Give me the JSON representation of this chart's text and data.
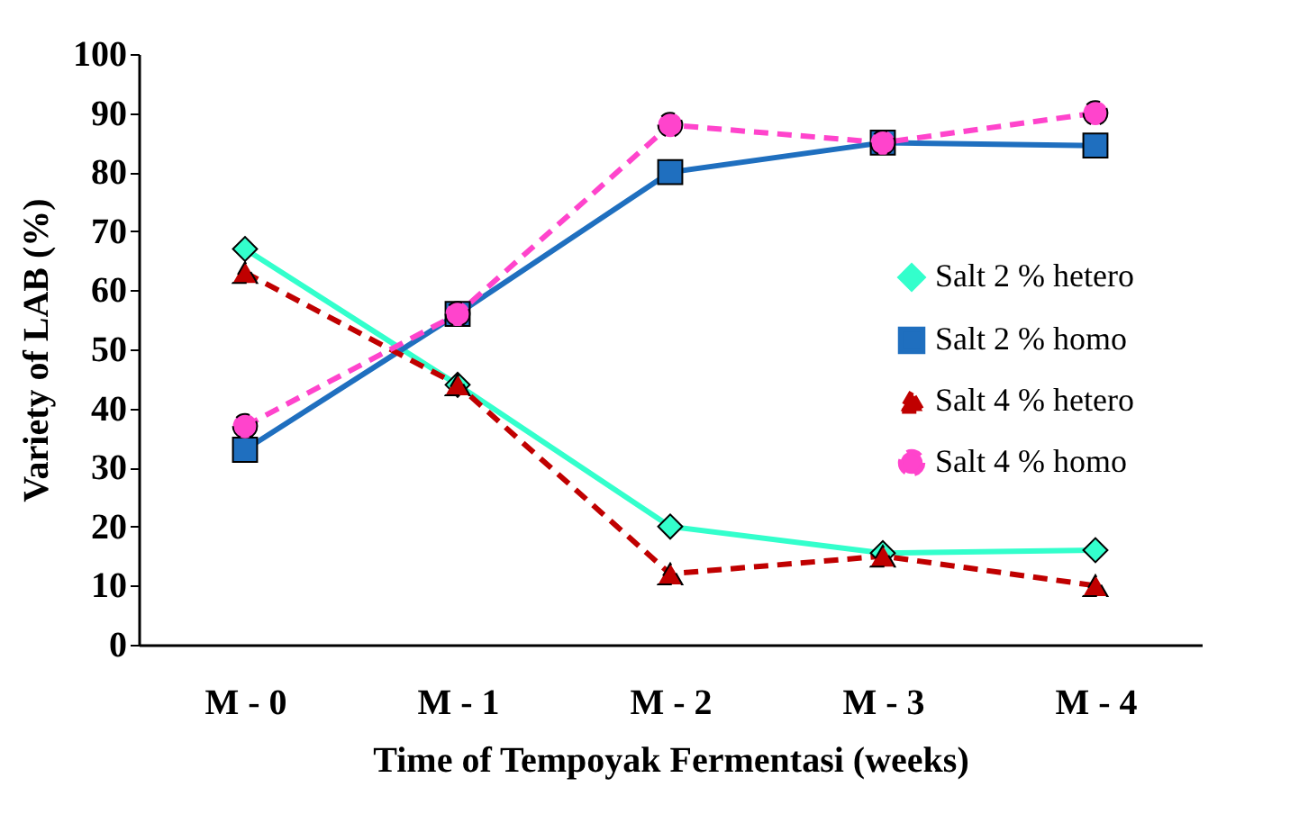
{
  "chart_data": {
    "type": "line",
    "xlabel": "Time of Tempoyak Fermentasi (weeks)",
    "ylabel": "Variety of  LAB (%)",
    "categories": [
      "M - 0",
      "M - 1",
      "M - 2",
      "M - 3",
      "M - 4"
    ],
    "ylim": [
      0,
      100
    ],
    "yticks": [
      0,
      10,
      20,
      30,
      40,
      50,
      60,
      70,
      80,
      90,
      100
    ],
    "grid": false,
    "legend": "right",
    "series": [
      {
        "name": "Salt 2 %  hetero",
        "color": "#33ffcc",
        "marker": "diamond",
        "line_style": "solid",
        "values": [
          67,
          44,
          20,
          15.5,
          16
        ]
      },
      {
        "name": "Salt 2 %  homo",
        "color": "#1f6fbf",
        "marker": "square",
        "line_style": "solid",
        "values": [
          33,
          56,
          80,
          85,
          84.5
        ]
      },
      {
        "name": "Salt  4 % hetero",
        "color": "#c00000",
        "marker": "triangle",
        "line_style": "dashed",
        "values": [
          63,
          44,
          12,
          15,
          10
        ]
      },
      {
        "name": "Salt 4 % homo",
        "color": "#ff44cc",
        "marker": "circle",
        "line_style": "dashed",
        "values": [
          37,
          56,
          88,
          85,
          90
        ]
      }
    ]
  }
}
